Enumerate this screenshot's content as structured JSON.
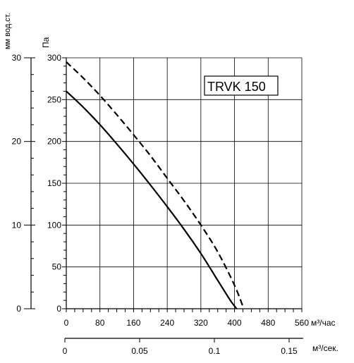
{
  "chart_data": {
    "type": "line",
    "title": "TRVK 150",
    "x_primary": {
      "unit_label": "м³/час",
      "ticks": [
        0,
        80,
        160,
        240,
        320,
        400,
        480,
        560
      ],
      "range": [
        0,
        560
      ]
    },
    "x_secondary": {
      "unit_label": "м³/сек.",
      "ticks": [
        "0",
        "0.05",
        "0.1",
        "0.15"
      ],
      "tick_values": [
        0,
        0.05,
        0.1,
        0.15
      ]
    },
    "y_primary": {
      "unit_label": "Па",
      "ticks": [
        0,
        50,
        100,
        150,
        200,
        250,
        300
      ],
      "range": [
        0,
        300
      ]
    },
    "y_secondary": {
      "unit_label": "мм вод.ст.",
      "ticks": [
        "0",
        "10",
        "20",
        "30"
      ],
      "tick_values": [
        0,
        10,
        20,
        30
      ]
    },
    "series": [
      {
        "style": "solid",
        "x": [
          0,
          40,
          80,
          120,
          160,
          200,
          240,
          280,
          320,
          360,
          390,
          405
        ],
        "y": [
          260,
          241,
          220,
          197,
          173,
          148,
          122,
          95,
          66,
          34,
          10,
          0
        ]
      },
      {
        "style": "dashed",
        "x": [
          0,
          40,
          80,
          120,
          160,
          200,
          240,
          280,
          320,
          360,
          400,
          422
        ],
        "y": [
          295,
          276,
          255,
          232,
          208,
          183,
          156,
          129,
          100,
          68,
          28,
          0
        ]
      }
    ]
  }
}
